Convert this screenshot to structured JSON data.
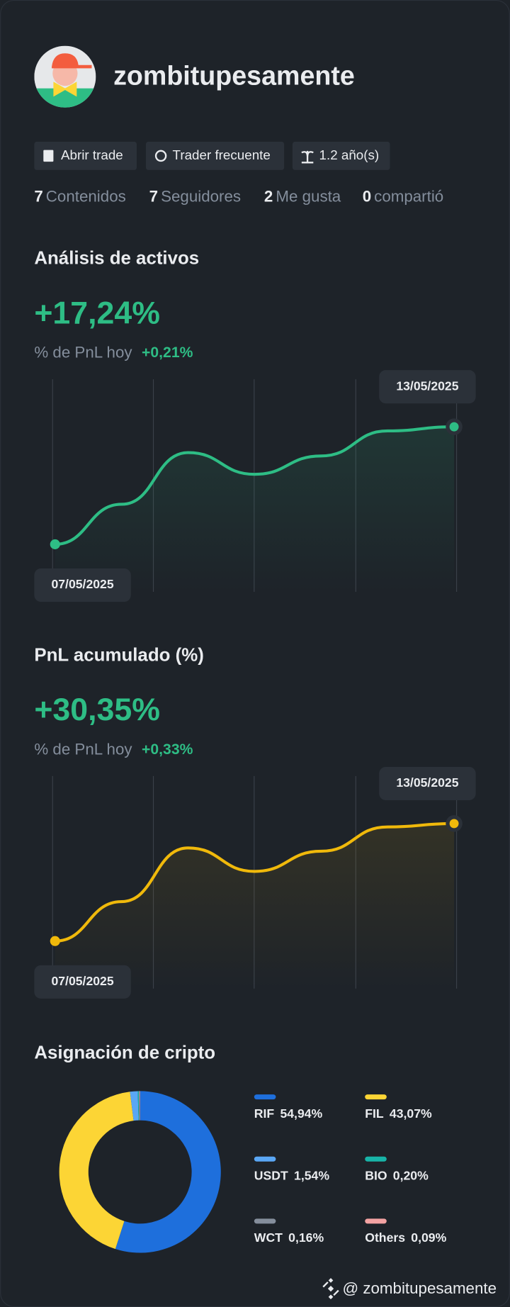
{
  "profile": {
    "username": "zombitupesamente",
    "badges": [
      "Abrir trade",
      "Trader frecuente",
      "1.2 año(s)"
    ],
    "stats": [
      {
        "count": 7,
        "label": "Contenidos"
      },
      {
        "count": 7,
        "label": "Seguidores"
      },
      {
        "count": 2,
        "label": "Me gusta"
      },
      {
        "count": 0,
        "label": "compartió"
      }
    ]
  },
  "asset_analysis": {
    "title": "Análisis de activos",
    "value": "+17,24%",
    "subtitle": "% de PnL hoy",
    "change": "+0,21%",
    "chart": {
      "type": "line",
      "x": [
        "07/05/2025",
        null,
        null,
        null,
        null,
        null,
        "13/05/2025"
      ],
      "values": [
        0,
        5.87,
        13.45,
        10.27,
        12.96,
        16.63,
        17.24
      ],
      "color": "#2ebd85"
    }
  },
  "cumulative_pnl": {
    "title": "PnL acumulado (%)",
    "value": "+30,35%",
    "subtitle": "% de PnL hoy",
    "change": "+0,33%",
    "chart": {
      "type": "line",
      "x": [
        "07/05/2025",
        null,
        null,
        null,
        null,
        null,
        "13/05/2025"
      ],
      "values": [
        0,
        10.19,
        24.06,
        17.99,
        23.2,
        29.48,
        30.35
      ],
      "color": "#f0b90b"
    }
  },
  "allocation": {
    "title": "Asignación de cripto",
    "chart": {
      "type": "pie",
      "categories": [
        "RIF",
        "FIL",
        "USDT",
        "BIO",
        "WCT",
        "Others"
      ],
      "values": [
        54.94,
        43.07,
        1.54,
        0.2,
        0.16,
        0.09
      ],
      "value_labels": [
        "54,94%",
        "43,07%",
        "1,54%",
        "0,20%",
        "0,16%",
        "0,09%"
      ],
      "colors": [
        "#1e6fdc",
        "#fcd535",
        "#5aa7f5",
        "#18b4a8",
        "#858e9c",
        "#f4a3a3"
      ]
    }
  },
  "footer": {
    "handle": "@ zombitupesamente"
  }
}
